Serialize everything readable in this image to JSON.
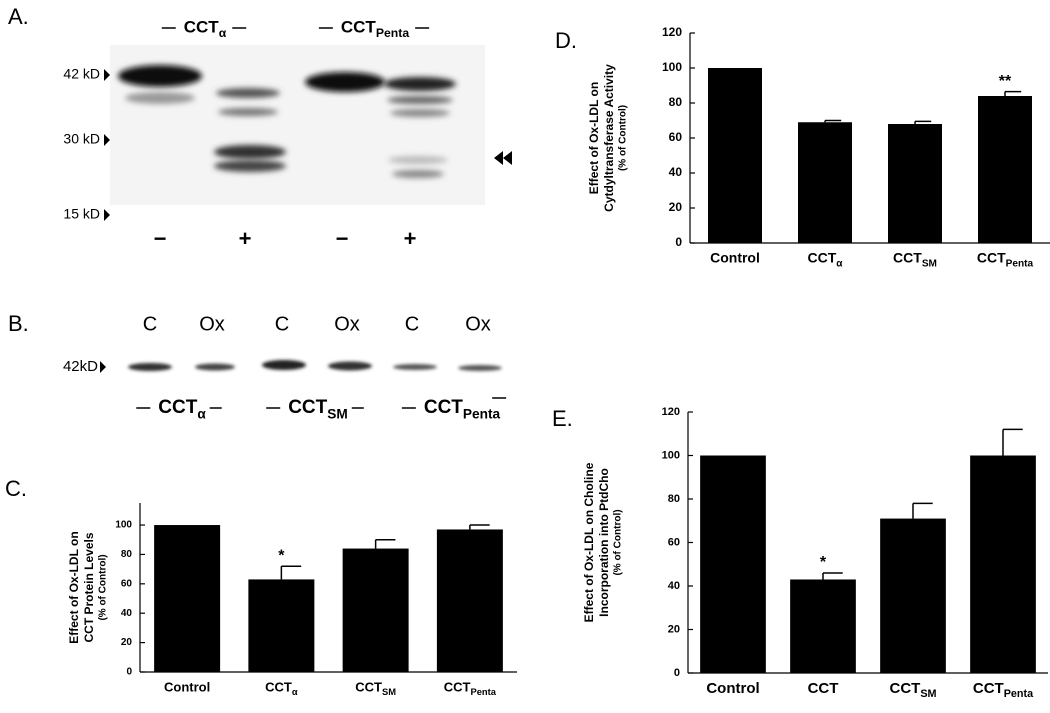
{
  "blots": {
    "panel_a": {
      "label": "A.",
      "markers": [
        "42 kD",
        "30 kD",
        "15 kD"
      ],
      "groups": [
        {
          "text": "CCT",
          "sub": "α"
        },
        {
          "text": "CCT",
          "sub": "Penta"
        }
      ],
      "lanes": [
        "−",
        "+",
        "−",
        "+"
      ]
    },
    "panel_b": {
      "label": "B.",
      "markers": [
        "42kD"
      ],
      "lanes": [
        "C",
        "Ox",
        "C",
        "Ox",
        "C",
        "Ox"
      ],
      "groups": [
        {
          "text": "CCT",
          "sub": "α"
        },
        {
          "text": "CCT",
          "sub": "SM"
        },
        {
          "text": "CCT",
          "sub": "Penta"
        }
      ]
    }
  },
  "chart_data": [
    {
      "type": "bar",
      "panel_label": "C.",
      "y_label": [
        "Effect of Ox-LDL on",
        "CCT Protein Levels",
        "(% of Control)"
      ],
      "categories": [
        "Control",
        "CCT",
        "CCT",
        "CCT"
      ],
      "category_subscripts": [
        null,
        "α",
        "SM",
        "Penta"
      ],
      "values": [
        100,
        63,
        84,
        97
      ],
      "errors": [
        null,
        9,
        6,
        3
      ],
      "annotations": [
        null,
        "*",
        null,
        null
      ],
      "color": "#000000",
      "ylim": [
        0,
        115
      ],
      "yticks": [
        0,
        20,
        40,
        60,
        80,
        100
      ]
    },
    {
      "type": "bar",
      "panel_label": "D.",
      "y_label": [
        "Effect of Ox-LDL on",
        "Cytdyltransferase Activity",
        "(% of Control)"
      ],
      "categories": [
        "Control",
        "CCT",
        "CCT",
        "CCT"
      ],
      "category_subscripts": [
        null,
        "α",
        "SM",
        "Penta"
      ],
      "values": [
        100,
        69,
        68,
        84
      ],
      "errors": [
        null,
        1,
        1.5,
        2.5
      ],
      "annotations": [
        null,
        null,
        null,
        "**"
      ],
      "color": "#000000",
      "ylim": [
        0,
        120
      ],
      "yticks": [
        0,
        20,
        40,
        60,
        80,
        100,
        120
      ]
    },
    {
      "type": "bar",
      "panel_label": "E.",
      "y_label": [
        "Effect of Ox-LDL on Choline",
        "Incorporation into PtdCho",
        "(% of Control)"
      ],
      "categories": [
        "Control",
        "CCT",
        "CCT",
        "CCT"
      ],
      "category_subscripts": [
        null,
        null,
        "SM",
        "Penta"
      ],
      "values": [
        100,
        43,
        71,
        100
      ],
      "errors": [
        null,
        3,
        7,
        12
      ],
      "annotations": [
        null,
        "*",
        null,
        null
      ],
      "color": "#000000",
      "ylim": [
        0,
        120
      ],
      "yticks": [
        0,
        20,
        40,
        60,
        80,
        100,
        120
      ]
    }
  ]
}
